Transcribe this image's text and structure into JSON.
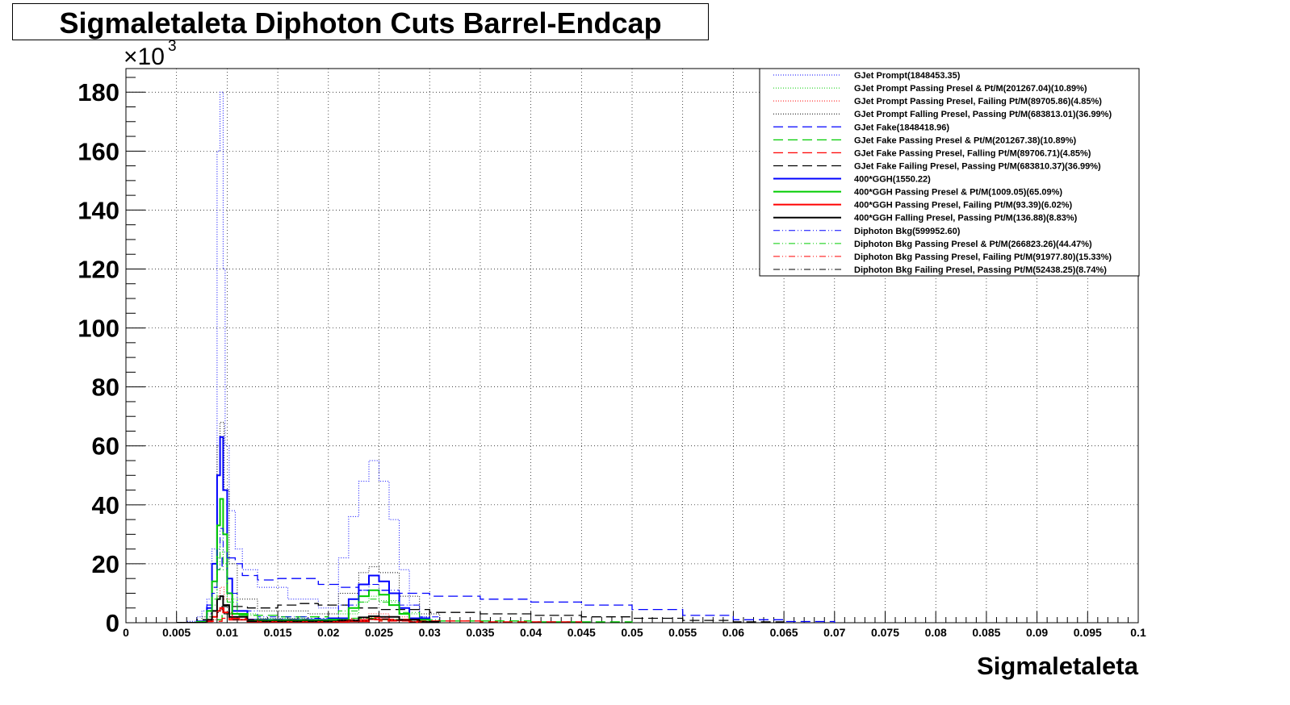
{
  "title": "Sigmaletaleta Diphoton Cuts Barrel-Endcap",
  "chart_data": {
    "type": "line",
    "style": "step-histogram",
    "title": "Sigmaletaleta Diphoton Cuts Barrel-Endcap",
    "xlabel": "Sigmaletaleta",
    "ylabel": "",
    "y_multiplier_label": "×10",
    "y_multiplier_exp": "3",
    "xlim": [
      0,
      0.1
    ],
    "ylim": [
      0,
      188
    ],
    "grid": true,
    "legend_position": "top-right",
    "x_ticks": [
      "0",
      "0.005",
      "0.01",
      "0.015",
      "0.02",
      "0.025",
      "0.03",
      "0.035",
      "0.04",
      "0.045",
      "0.05",
      "0.055",
      "0.06",
      "0.065",
      "0.07",
      "0.075",
      "0.08",
      "0.085",
      "0.09",
      "0.095",
      "0.1"
    ],
    "y_ticks": [
      "0",
      "20",
      "40",
      "60",
      "80",
      "100",
      "120",
      "140",
      "160",
      "180"
    ],
    "series": [
      {
        "name": "GJet Prompt(1848453.35)",
        "color": "#0000ff",
        "dash": "1,2",
        "width": 1,
        "points": [
          [
            0.005,
            0
          ],
          [
            0.006,
            0.5
          ],
          [
            0.007,
            2
          ],
          [
            0.0075,
            4
          ],
          [
            0.008,
            8
          ],
          [
            0.0085,
            25
          ],
          [
            0.009,
            160
          ],
          [
            0.0093,
            180
          ],
          [
            0.0096,
            120
          ],
          [
            0.0098,
            60
          ],
          [
            0.0102,
            38
          ],
          [
            0.0108,
            25
          ],
          [
            0.0115,
            18
          ],
          [
            0.013,
            12
          ],
          [
            0.016,
            8
          ],
          [
            0.019,
            5
          ],
          [
            0.021,
            22
          ],
          [
            0.022,
            36
          ],
          [
            0.023,
            48
          ],
          [
            0.024,
            55
          ],
          [
            0.025,
            48
          ],
          [
            0.026,
            35
          ],
          [
            0.027,
            18
          ],
          [
            0.028,
            6
          ],
          [
            0.029,
            2
          ],
          [
            0.03,
            0.5
          ],
          [
            0.031,
            0
          ]
        ]
      },
      {
        "name": "GJet Prompt Passing Presel & Pt/M(201267.04)(10.89%)",
        "color": "#00cc00",
        "dash": "1,2",
        "width": 1,
        "points": [
          [
            0.005,
            0
          ],
          [
            0.0075,
            1
          ],
          [
            0.0085,
            6
          ],
          [
            0.009,
            22
          ],
          [
            0.0093,
            28
          ],
          [
            0.0096,
            20
          ],
          [
            0.01,
            8
          ],
          [
            0.011,
            3
          ],
          [
            0.013,
            1.5
          ],
          [
            0.018,
            1
          ],
          [
            0.021,
            3
          ],
          [
            0.023,
            7
          ],
          [
            0.024,
            9
          ],
          [
            0.025,
            7.5
          ],
          [
            0.027,
            3
          ],
          [
            0.029,
            0.5
          ],
          [
            0.031,
            0
          ]
        ]
      },
      {
        "name": "GJet Prompt Passing Presel, Failing Pt/M(89705.86)(4.85%)",
        "color": "#ff0000",
        "dash": "1,2",
        "width": 1,
        "points": [
          [
            0.005,
            0
          ],
          [
            0.008,
            1
          ],
          [
            0.009,
            9
          ],
          [
            0.0093,
            12
          ],
          [
            0.0097,
            8
          ],
          [
            0.0105,
            2
          ],
          [
            0.012,
            0.8
          ],
          [
            0.018,
            0.5
          ],
          [
            0.022,
            1.5
          ],
          [
            0.024,
            3
          ],
          [
            0.026,
            2
          ],
          [
            0.028,
            0.5
          ],
          [
            0.03,
            0
          ]
        ]
      },
      {
        "name": "GJet Prompt Falling Presel, Passing Pt/M(683813.01)(36.99%)",
        "color": "#000000",
        "dash": "1,2",
        "width": 1,
        "points": [
          [
            0.005,
            0
          ],
          [
            0.0075,
            2
          ],
          [
            0.0085,
            12
          ],
          [
            0.009,
            60
          ],
          [
            0.0093,
            68
          ],
          [
            0.0097,
            45
          ],
          [
            0.0102,
            20
          ],
          [
            0.011,
            8
          ],
          [
            0.013,
            4
          ],
          [
            0.018,
            3
          ],
          [
            0.021,
            10
          ],
          [
            0.023,
            17
          ],
          [
            0.024,
            19
          ],
          [
            0.025,
            17
          ],
          [
            0.027,
            9
          ],
          [
            0.029,
            3
          ],
          [
            0.031,
            0
          ]
        ]
      },
      {
        "name": "GJet Fake(1848418.96)",
        "color": "#0000ff",
        "dash": "12,6",
        "width": 1.3,
        "points": [
          [
            0.005,
            0
          ],
          [
            0.007,
            1
          ],
          [
            0.008,
            6
          ],
          [
            0.0085,
            12
          ],
          [
            0.009,
            18
          ],
          [
            0.0095,
            22
          ],
          [
            0.0102,
            22
          ],
          [
            0.0108,
            20
          ],
          [
            0.0115,
            16
          ],
          [
            0.013,
            14.5
          ],
          [
            0.015,
            15
          ],
          [
            0.017,
            15
          ],
          [
            0.019,
            13
          ],
          [
            0.021,
            12
          ],
          [
            0.023,
            11
          ],
          [
            0.026,
            10
          ],
          [
            0.03,
            9
          ],
          [
            0.035,
            8
          ],
          [
            0.04,
            7
          ],
          [
            0.045,
            6
          ],
          [
            0.05,
            4.5
          ],
          [
            0.055,
            2.5
          ],
          [
            0.06,
            1
          ],
          [
            0.065,
            0.4
          ],
          [
            0.07,
            0
          ]
        ]
      },
      {
        "name": "GJet Fake Passing Presel & Pt/M(201267.38)(10.89%)",
        "color": "#00cc00",
        "dash": "12,6",
        "width": 1.3,
        "points": [
          [
            0.005,
            0
          ],
          [
            0.008,
            1
          ],
          [
            0.0095,
            3
          ],
          [
            0.011,
            2.5
          ],
          [
            0.015,
            2
          ],
          [
            0.02,
            1.5
          ],
          [
            0.025,
            1
          ],
          [
            0.03,
            0.6
          ],
          [
            0.04,
            0.3
          ],
          [
            0.05,
            0
          ]
        ]
      },
      {
        "name": "GJet Fake Passing Presel, Falling Pt/M(89706.71)(4.85%)",
        "color": "#ff0000",
        "dash": "12,6",
        "width": 1.3,
        "points": [
          [
            0.005,
            0
          ],
          [
            0.008,
            0.5
          ],
          [
            0.0095,
            1.5
          ],
          [
            0.012,
            1.2
          ],
          [
            0.018,
            1
          ],
          [
            0.025,
            0.6
          ],
          [
            0.035,
            0.3
          ],
          [
            0.045,
            0
          ]
        ]
      },
      {
        "name": "GJet Fake Failing Presel, Passing Pt/M(683810.37)(36.99%)",
        "color": "#000000",
        "dash": "12,6",
        "width": 1.3,
        "points": [
          [
            0.005,
            0
          ],
          [
            0.007,
            1
          ],
          [
            0.0085,
            4
          ],
          [
            0.0095,
            5.5
          ],
          [
            0.012,
            5
          ],
          [
            0.015,
            6
          ],
          [
            0.017,
            6.5
          ],
          [
            0.019,
            6
          ],
          [
            0.022,
            5
          ],
          [
            0.025,
            4.5
          ],
          [
            0.03,
            3.5
          ],
          [
            0.035,
            3
          ],
          [
            0.04,
            2.5
          ],
          [
            0.045,
            2
          ],
          [
            0.05,
            1.5
          ],
          [
            0.055,
            0.8
          ],
          [
            0.06,
            0.3
          ],
          [
            0.065,
            0
          ]
        ]
      },
      {
        "name": "400*GGH(1550.22)",
        "color": "#0000ff",
        "dash": "",
        "width": 2,
        "points": [
          [
            0.005,
            0
          ],
          [
            0.007,
            0.5
          ],
          [
            0.008,
            5
          ],
          [
            0.0085,
            20
          ],
          [
            0.009,
            50
          ],
          [
            0.0093,
            63
          ],
          [
            0.0096,
            45
          ],
          [
            0.01,
            15
          ],
          [
            0.0105,
            4
          ],
          [
            0.012,
            1
          ],
          [
            0.02,
            1.5
          ],
          [
            0.022,
            8
          ],
          [
            0.023,
            13
          ],
          [
            0.024,
            16
          ],
          [
            0.025,
            14
          ],
          [
            0.026,
            10
          ],
          [
            0.027,
            5
          ],
          [
            0.028,
            1.5
          ],
          [
            0.03,
            0
          ]
        ]
      },
      {
        "name": "400*GGH Passing Presel & Pt/M(1009.05)(65.09%)",
        "color": "#00cc00",
        "dash": "",
        "width": 2,
        "points": [
          [
            0.005,
            0
          ],
          [
            0.007,
            0.3
          ],
          [
            0.008,
            4
          ],
          [
            0.0085,
            14
          ],
          [
            0.009,
            33
          ],
          [
            0.0093,
            42
          ],
          [
            0.0096,
            30
          ],
          [
            0.01,
            10
          ],
          [
            0.0105,
            3
          ],
          [
            0.012,
            0.8
          ],
          [
            0.02,
            1
          ],
          [
            0.022,
            5
          ],
          [
            0.023,
            9
          ],
          [
            0.024,
            11
          ],
          [
            0.025,
            9.5
          ],
          [
            0.026,
            6
          ],
          [
            0.027,
            3
          ],
          [
            0.028,
            1
          ],
          [
            0.03,
            0
          ]
        ]
      },
      {
        "name": "400*GGH Passing Presel, Failing Pt/M(93.39)(6.02%)",
        "color": "#ff0000",
        "dash": "",
        "width": 2,
        "points": [
          [
            0.005,
            0
          ],
          [
            0.008,
            0.5
          ],
          [
            0.0085,
            2
          ],
          [
            0.009,
            4
          ],
          [
            0.0093,
            5
          ],
          [
            0.0096,
            3.5
          ],
          [
            0.0102,
            1
          ],
          [
            0.012,
            0.3
          ],
          [
            0.022,
            0.5
          ],
          [
            0.024,
            1.2
          ],
          [
            0.026,
            0.8
          ],
          [
            0.028,
            0.2
          ],
          [
            0.03,
            0
          ]
        ]
      },
      {
        "name": "400*GGH Falling Presel, Passing Pt/M(136.88)(8.83%)",
        "color": "#000000",
        "dash": "",
        "width": 2,
        "points": [
          [
            0.005,
            0
          ],
          [
            0.008,
            1
          ],
          [
            0.0085,
            4
          ],
          [
            0.009,
            8
          ],
          [
            0.0093,
            9
          ],
          [
            0.0096,
            6
          ],
          [
            0.0102,
            2
          ],
          [
            0.012,
            0.5
          ],
          [
            0.021,
            0.8
          ],
          [
            0.023,
            1.8
          ],
          [
            0.024,
            2.2
          ],
          [
            0.025,
            2
          ],
          [
            0.027,
            1
          ],
          [
            0.029,
            0.3
          ],
          [
            0.031,
            0
          ]
        ]
      },
      {
        "name": "Diphoton Bkg(599952.60)",
        "color": "#0000ff",
        "dash": "8,3,1,3,1,3",
        "width": 1,
        "points": [
          [
            0.005,
            0
          ],
          [
            0.008,
            3
          ],
          [
            0.0085,
            10
          ],
          [
            0.009,
            25
          ],
          [
            0.0093,
            32
          ],
          [
            0.0096,
            24
          ],
          [
            0.01,
            10
          ],
          [
            0.011,
            4
          ],
          [
            0.013,
            2
          ],
          [
            0.018,
            1.5
          ],
          [
            0.021,
            6
          ],
          [
            0.023,
            11
          ],
          [
            0.024,
            13
          ],
          [
            0.025,
            11
          ],
          [
            0.027,
            6
          ],
          [
            0.029,
            2
          ],
          [
            0.031,
            0
          ]
        ]
      },
      {
        "name": "Diphoton Bkg Passing Presel & Pt/M(266823.26)(44.47%)",
        "color": "#00cc00",
        "dash": "8,3,1,3,1,3",
        "width": 1,
        "points": [
          [
            0.005,
            0
          ],
          [
            0.008,
            2
          ],
          [
            0.0085,
            8
          ],
          [
            0.009,
            18
          ],
          [
            0.0093,
            24
          ],
          [
            0.0096,
            18
          ],
          [
            0.01,
            7
          ],
          [
            0.011,
            2.5
          ],
          [
            0.013,
            1
          ],
          [
            0.019,
            1
          ],
          [
            0.021,
            4
          ],
          [
            0.023,
            7
          ],
          [
            0.024,
            8
          ],
          [
            0.025,
            7
          ],
          [
            0.027,
            3.5
          ],
          [
            0.029,
            1
          ],
          [
            0.031,
            0
          ]
        ]
      },
      {
        "name": "Diphoton Bkg Passing Presel, Failing Pt/M(91977.80)(15.33%)",
        "color": "#ff0000",
        "dash": "8,3,1,3,1,3",
        "width": 1,
        "points": [
          [
            0.005,
            0
          ],
          [
            0.008,
            1
          ],
          [
            0.009,
            4
          ],
          [
            0.0093,
            5
          ],
          [
            0.0097,
            3.5
          ],
          [
            0.0105,
            1
          ],
          [
            0.013,
            0.4
          ],
          [
            0.021,
            0.8
          ],
          [
            0.024,
            1.8
          ],
          [
            0.026,
            1.2
          ],
          [
            0.028,
            0.3
          ],
          [
            0.03,
            0
          ]
        ]
      },
      {
        "name": "Diphoton Bkg Failing Presel, Passing Pt/M(52438.25)(8.74%)",
        "color": "#000000",
        "dash": "8,3,1,3,1,3",
        "width": 1,
        "points": [
          [
            0.005,
            0
          ],
          [
            0.008,
            1
          ],
          [
            0.009,
            3.5
          ],
          [
            0.0093,
            4
          ],
          [
            0.0097,
            3
          ],
          [
            0.0105,
            1
          ],
          [
            0.013,
            0.5
          ],
          [
            0.021,
            0.6
          ],
          [
            0.024,
            1.3
          ],
          [
            0.026,
            0.9
          ],
          [
            0.028,
            0.2
          ],
          [
            0.03,
            0
          ]
        ]
      }
    ]
  }
}
